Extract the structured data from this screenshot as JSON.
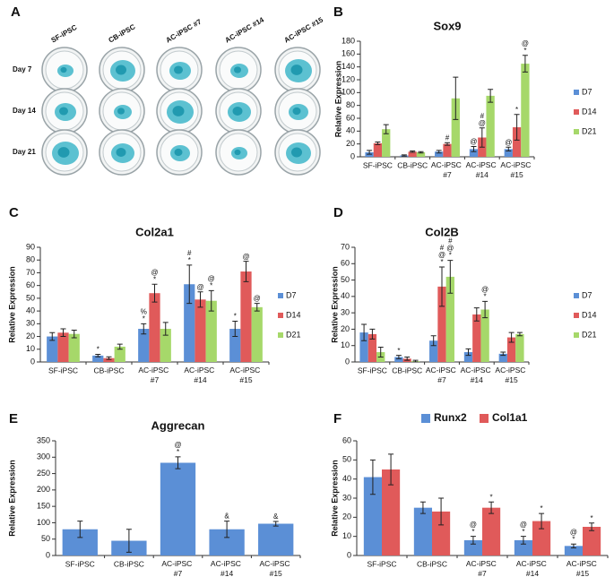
{
  "figure": {
    "panel_a": {
      "letter": "A",
      "columns": [
        "SF-iPSC",
        "CB-iPSC",
        "AC-iPSC #7",
        "AC-iPSC #14",
        "AC-iPSC #15"
      ],
      "rows": [
        "Day 7",
        "Day 14",
        "Day 21"
      ]
    }
  },
  "chart_data": [
    {
      "type": "bar",
      "letter": "B",
      "title": "Sox9",
      "y_label": "Relative Expression",
      "legend": "right",
      "categories": [
        "SF-iPSC",
        "CB-iPSC",
        "AC-iPSC #7",
        "AC-iPSC #14",
        "AC-iPSC #15"
      ],
      "ylim": [
        0,
        180
      ],
      "yticks": [
        0,
        20,
        40,
        60,
        80,
        100,
        120,
        140,
        160,
        180
      ],
      "series": [
        {
          "name": "D7",
          "color": "#5b8fd6",
          "values": [
            7,
            2,
            8,
            12,
            12
          ],
          "errors": [
            3,
            1,
            2,
            4,
            3
          ],
          "annotations": [
            null,
            null,
            null,
            [
              "@"
            ],
            [
              "@"
            ]
          ]
        },
        {
          "name": "D14",
          "color": "#e05a5a",
          "values": [
            21,
            8,
            20,
            30,
            46
          ],
          "errors": [
            2,
            1,
            2,
            15,
            20
          ],
          "annotations": [
            null,
            null,
            [
              "#"
            ],
            [
              "#",
              "@"
            ],
            [
              "*"
            ]
          ]
        },
        {
          "name": "D21",
          "color": "#a6d86a",
          "values": [
            43,
            7,
            91,
            95,
            145
          ],
          "errors": [
            7,
            1,
            33,
            10,
            13
          ],
          "annotations": [
            null,
            null,
            null,
            null,
            [
              "@",
              "*"
            ]
          ]
        }
      ]
    },
    {
      "type": "bar",
      "letter": "C",
      "title": "Col2a1",
      "y_label": "Relative Expression",
      "legend": "right",
      "categories": [
        "SF-iPSC",
        "CB-iPSC",
        "AC-iPSC #7",
        "AC-iPSC #14",
        "AC-iPSC #15"
      ],
      "ylim": [
        0,
        90
      ],
      "yticks": [
        0,
        10,
        20,
        30,
        40,
        50,
        60,
        70,
        80,
        90
      ],
      "series": [
        {
          "name": "D7",
          "color": "#5b8fd6",
          "values": [
            20,
            5,
            26,
            61,
            26
          ],
          "errors": [
            3,
            1,
            4,
            15,
            6
          ],
          "annotations": [
            null,
            [
              "*"
            ],
            [
              "%",
              "*"
            ],
            [
              "#",
              "*"
            ],
            [
              "*"
            ]
          ]
        },
        {
          "name": "D14",
          "color": "#e05a5a",
          "values": [
            23,
            3,
            54,
            49,
            71
          ],
          "errors": [
            3,
            1,
            7,
            6,
            8
          ],
          "annotations": [
            null,
            null,
            [
              "@",
              "*"
            ],
            [
              "@"
            ],
            [
              "@"
            ]
          ]
        },
        {
          "name": "D21",
          "color": "#a6d86a",
          "values": [
            22,
            12,
            26,
            48,
            43
          ],
          "errors": [
            3,
            2,
            5,
            8,
            3
          ],
          "annotations": [
            null,
            null,
            null,
            [
              "@",
              "*"
            ],
            [
              "@"
            ]
          ]
        }
      ]
    },
    {
      "type": "bar",
      "letter": "D",
      "title": "Col2B",
      "y_label": "Relative Expression",
      "legend": "right",
      "categories": [
        "SF-iPSC",
        "CB-iPSC",
        "AC-iPSC #7",
        "AC-iPSC #14",
        "AC-iPSC #15"
      ],
      "ylim": [
        0,
        70
      ],
      "yticks": [
        0,
        10,
        20,
        30,
        40,
        50,
        60,
        70
      ],
      "series": [
        {
          "name": "D7",
          "color": "#5b8fd6",
          "values": [
            18,
            3,
            13,
            6,
            5
          ],
          "errors": [
            5,
            1,
            3,
            2,
            1
          ],
          "annotations": [
            null,
            [
              "*"
            ],
            null,
            null,
            null
          ]
        },
        {
          "name": "D14",
          "color": "#e05a5a",
          "values": [
            17,
            2,
            46,
            29,
            15
          ],
          "errors": [
            3,
            1,
            12,
            4,
            3
          ],
          "annotations": [
            null,
            null,
            [
              "#",
              "@",
              "*"
            ],
            null,
            null
          ]
        },
        {
          "name": "D21",
          "color": "#a6d86a",
          "values": [
            6,
            0.5,
            52,
            32,
            17
          ],
          "errors": [
            3,
            0.5,
            10,
            5,
            1
          ],
          "annotations": [
            null,
            null,
            [
              "#",
              "@",
              "*"
            ],
            [
              "@",
              "*"
            ],
            null
          ]
        }
      ]
    },
    {
      "type": "bar",
      "letter": "E",
      "title": "Aggrecan",
      "y_label": "Relative Expression",
      "legend": "none",
      "categories": [
        "SF-iPSC",
        "CB-iPSC",
        "AC-iPSC #7",
        "AC-iPSC #14",
        "AC-iPSC #15"
      ],
      "ylim": [
        0,
        350
      ],
      "yticks": [
        0,
        50,
        100,
        150,
        200,
        250,
        300,
        350
      ],
      "series": [
        {
          "color": "#5b8fd6",
          "values": [
            80,
            45,
            283,
            80,
            97
          ],
          "errors": [
            25,
            35,
            18,
            25,
            7
          ],
          "annotations": [
            null,
            null,
            [
              "@",
              "*"
            ],
            [
              "&"
            ],
            [
              "&"
            ]
          ]
        }
      ]
    },
    {
      "type": "bar",
      "letter": "F",
      "y_label": "Relative Expression",
      "legend": "top",
      "categories": [
        "SF-iPSC",
        "CB-iPSC",
        "AC-iPSC #7",
        "AC-iPSC #14",
        "AC-iPSC #15"
      ],
      "ylim": [
        0,
        60
      ],
      "yticks": [
        0,
        10,
        20,
        30,
        40,
        50,
        60
      ],
      "series": [
        {
          "name": "Runx2",
          "color": "#5b8fd6",
          "values": [
            41,
            25,
            8,
            8,
            5
          ],
          "errors": [
            9,
            3,
            2,
            2,
            1
          ],
          "annotations": [
            null,
            null,
            [
              "@",
              "*"
            ],
            [
              "@",
              "*"
            ],
            [
              "@",
              "*"
            ]
          ]
        },
        {
          "name": "Col1a1",
          "color": "#e05a5a",
          "values": [
            45,
            23,
            25,
            18,
            15
          ],
          "errors": [
            8,
            7,
            3,
            4,
            2
          ],
          "annotations": [
            null,
            null,
            [
              "*"
            ],
            [
              "*"
            ],
            [
              "*"
            ]
          ]
        }
      ]
    }
  ]
}
